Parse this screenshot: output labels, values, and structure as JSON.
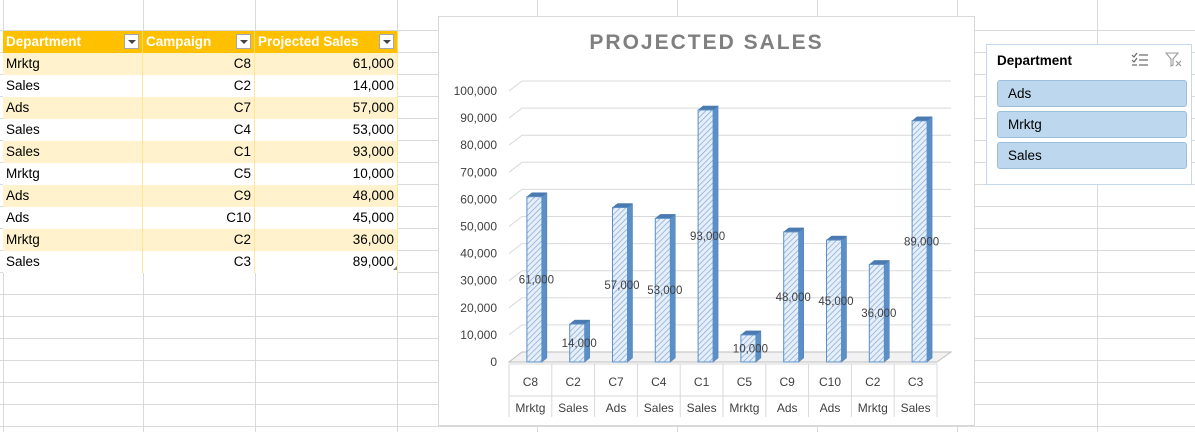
{
  "table": {
    "headers": [
      "Department",
      "Campaign",
      "Projected Sales"
    ],
    "rows": [
      {
        "department": "Mrktg",
        "campaign": "C8",
        "sales": "61,000"
      },
      {
        "department": "Sales",
        "campaign": "C2",
        "sales": "14,000"
      },
      {
        "department": "Ads",
        "campaign": "C7",
        "sales": "57,000"
      },
      {
        "department": "Sales",
        "campaign": "C4",
        "sales": "53,000"
      },
      {
        "department": "Sales",
        "campaign": "C1",
        "sales": "93,000"
      },
      {
        "department": "Mrktg",
        "campaign": "C5",
        "sales": "10,000"
      },
      {
        "department": "Ads",
        "campaign": "C9",
        "sales": "48,000"
      },
      {
        "department": "Ads",
        "campaign": "C10",
        "sales": "45,000"
      },
      {
        "department": "Mrktg",
        "campaign": "C2",
        "sales": "36,000"
      },
      {
        "department": "Sales",
        "campaign": "C3",
        "sales": "89,000"
      }
    ]
  },
  "slicer": {
    "title": "Department",
    "items": [
      "Ads",
      "Mrktg",
      "Sales"
    ]
  },
  "colors": {
    "header": "#ffc000",
    "band": "#fff2cc",
    "bar_fill": "#dce9f7",
    "bar_stroke": "#5b8fc7",
    "slicer_item": "#bdd7ee"
  },
  "chart_data": {
    "type": "bar",
    "title": "PROJECTED SALES",
    "categories": [
      {
        "campaign": "C8",
        "department": "Mrktg"
      },
      {
        "campaign": "C2",
        "department": "Sales"
      },
      {
        "campaign": "C7",
        "department": "Ads"
      },
      {
        "campaign": "C4",
        "department": "Sales"
      },
      {
        "campaign": "C1",
        "department": "Sales"
      },
      {
        "campaign": "C5",
        "department": "Mrktg"
      },
      {
        "campaign": "C9",
        "department": "Ads"
      },
      {
        "campaign": "C10",
        "department": "Ads"
      },
      {
        "campaign": "C2",
        "department": "Mrktg"
      },
      {
        "campaign": "C3",
        "department": "Sales"
      }
    ],
    "values": [
      61000,
      14000,
      57000,
      53000,
      93000,
      10000,
      48000,
      45000,
      36000,
      89000
    ],
    "data_labels": [
      "61,000",
      "14,000",
      "57,000",
      "53,000",
      "93,000",
      "10,000",
      "48,000",
      "45,000",
      "36,000",
      "89,000"
    ],
    "ylim": [
      0,
      100000
    ],
    "yticks": [
      0,
      10000,
      20000,
      30000,
      40000,
      50000,
      60000,
      70000,
      80000,
      90000,
      100000
    ],
    "ytick_labels": [
      "0",
      "10,000",
      "20,000",
      "30,000",
      "40,000",
      "50,000",
      "60,000",
      "70,000",
      "80,000",
      "90,000",
      "100,000"
    ],
    "grid": true,
    "legend": "none",
    "style": "3d-column"
  }
}
